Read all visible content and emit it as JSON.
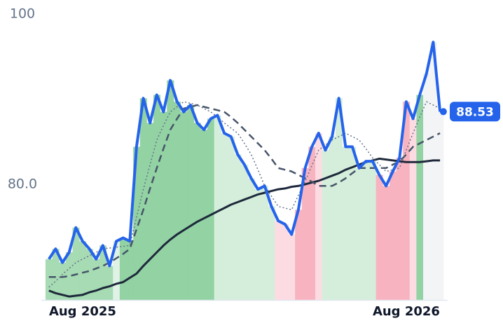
{
  "chart_data": {
    "type": "line",
    "categories": [
      null,
      null,
      null,
      null,
      null,
      "Aug 2025",
      null,
      null,
      null,
      null,
      null,
      null,
      null,
      null,
      null,
      null,
      null,
      null,
      null,
      null,
      null,
      null,
      null,
      null,
      null,
      null,
      null,
      null,
      null,
      null,
      null,
      null,
      null,
      null,
      null,
      null,
      null,
      null,
      null,
      null,
      null,
      null,
      null,
      null,
      null,
      null,
      null,
      null,
      null,
      null,
      null,
      null,
      null,
      "Aug 2026",
      null,
      null,
      null,
      null,
      null
    ],
    "ylim": [
      66.4,
      100
    ],
    "yticks": [
      {
        "value": 80,
        "label": "80.0"
      },
      100
    ],
    "zone_colors": [
      "#a6dbb3",
      "#a6dbb3",
      "#a6dbb3",
      "#a6dbb3",
      "#a6dbb3",
      "#a6dbb3",
      "#a6dbb3",
      "#a6dbb3",
      "#a6dbb3",
      "#a6dbb3",
      "#dff2e5",
      "#92d2a3",
      "#92d2a3",
      "#92d2a3",
      "#92d2a3",
      "#92d2a3",
      "#92d2a3",
      "#92d2a3",
      "#92d2a3",
      "#92d2a3",
      "#92d2a3",
      "#92d2a3",
      "#92d2a3",
      "#92d2a3",
      "#92d2a3",
      "#d4eedb",
      "#d4eedb",
      "#d4eedb",
      "#d4eedb",
      "#d4eedb",
      "#d4eedb",
      "#d4eedb",
      "#d4eedb",
      "#d4eedb",
      "#fcdce2",
      "#fcdce2",
      "#fcdce2",
      "#f8b3c0",
      "#f8b3c0",
      "#f8b3c0",
      "#fcdce2",
      "#d4eedb",
      "#d4eedb",
      "#d4eedb",
      "#d4eedb",
      "#d4eedb",
      "#d4eedb",
      "#d4eedb",
      "#d4eedb",
      "#f8b3c0",
      "#f8b3c0",
      "#f8b3c0",
      "#f8b3c0",
      "#f8b3c0",
      "#fcdce2",
      "#92d2a3",
      "#f3f4f6",
      "#f3f4f6",
      "#f3f4f6"
    ],
    "series": [
      {
        "color": "#1e293b",
        "dash": "solid",
        "values": [
          67.5,
          67.2,
          67.0,
          66.8,
          66.9,
          67.0,
          67.3,
          67.5,
          67.8,
          68.0,
          68.3,
          68.5,
          69.0,
          69.5,
          70.4,
          71.2,
          72.0,
          72.8,
          73.5,
          74.1,
          74.6,
          75.1,
          75.6,
          76.0,
          76.4,
          76.8,
          77.2,
          77.6,
          77.9,
          78.2,
          78.5,
          78.8,
          79.0,
          79.2,
          79.4,
          79.5,
          79.7,
          79.8,
          80.0,
          80.2,
          80.4,
          80.7,
          81.0,
          81.3,
          81.7,
          82.0,
          82.3,
          82.6,
          82.8,
          83.0,
          82.9,
          82.8,
          82.7,
          82.6,
          82.6,
          82.6,
          82.7,
          82.8,
          82.8
        ]
      },
      {
        "color": "#475569",
        "dash": "dashed",
        "values": [
          69.1,
          69.1,
          69.1,
          69.2,
          69.4,
          69.6,
          69.8,
          70.1,
          70.4,
          70.8,
          71.3,
          71.8,
          72.4,
          74.7,
          77.0,
          79.5,
          81.9,
          84.2,
          86.4,
          87.7,
          88.9,
          89.1,
          89.3,
          89.1,
          88.9,
          88.7,
          88.5,
          87.9,
          87.2,
          86.4,
          85.6,
          84.8,
          84.0,
          83.0,
          81.9,
          81.7,
          81.5,
          81.1,
          80.7,
          80.3,
          79.8,
          79.8,
          79.8,
          80.2,
          80.7,
          81.3,
          81.9,
          81.9,
          81.9,
          81.9,
          81.9,
          82.3,
          82.7,
          83.5,
          84.4,
          84.8,
          85.2,
          85.6,
          86.0
        ]
      },
      {
        "color": "#64748b",
        "dash": "dotted",
        "values": [
          67.9,
          68.6,
          69.4,
          70.1,
          70.8,
          71.2,
          71.6,
          72.0,
          72.4,
          72.5,
          72.6,
          72.7,
          72.8,
          76.1,
          79.4,
          82.3,
          85.2,
          86.9,
          88.5,
          89.1,
          89.7,
          89.5,
          89.3,
          88.9,
          88.5,
          87.9,
          87.2,
          86.6,
          86.0,
          84.8,
          83.5,
          81.7,
          79.8,
          78.6,
          77.4,
          77.2,
          77.0,
          78.7,
          80.3,
          82.2,
          84.0,
          84.6,
          85.2,
          85.6,
          86.0,
          85.6,
          85.2,
          84.2,
          83.1,
          82.3,
          81.5,
          81.7,
          81.9,
          84.0,
          86.0,
          87.9,
          89.7,
          89.3,
          88.9
        ]
      },
      {
        "color": "#2563eb",
        "dash": "solid",
        "values": [
          71.2,
          72.4,
          70.8,
          72.0,
          74.9,
          73.3,
          72.4,
          71.2,
          72.8,
          70.4,
          73.3,
          73.7,
          73.3,
          84.4,
          90.1,
          87.2,
          90.5,
          88.5,
          92.2,
          89.7,
          88.5,
          89.3,
          87.2,
          86.4,
          87.7,
          88.1,
          86.0,
          85.6,
          83.5,
          82.3,
          80.7,
          79.4,
          79.8,
          77.4,
          75.7,
          75.3,
          74.1,
          77.0,
          81.9,
          84.4,
          86.0,
          84.0,
          85.6,
          90.1,
          84.4,
          84.4,
          81.9,
          82.7,
          82.7,
          81.1,
          79.8,
          81.5,
          83.1,
          89.7,
          87.7,
          90.5,
          93.0,
          96.7,
          88.53
        ]
      }
    ]
  }
}
